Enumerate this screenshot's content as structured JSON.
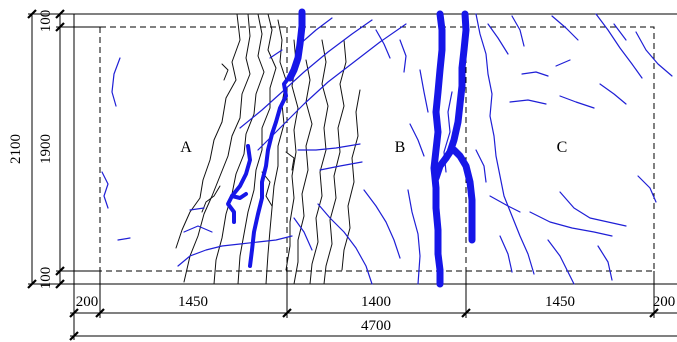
{
  "drawing": {
    "zones": [
      "A",
      "B",
      "C"
    ],
    "height_dimensions": {
      "total": "2100",
      "inner": "1900",
      "top_edge": "100",
      "bottom_edge": "100"
    },
    "width_dimensions": {
      "left_edge": "200",
      "segment_a": "1450",
      "segment_b": "1400",
      "segment_c": "1450",
      "right_edge": "200",
      "total": "4700"
    },
    "colors": {
      "lines": "#000000",
      "cracks_dark": "#111111",
      "cracks_blue": "#1f1fd6",
      "wide_cracks": "#1616e8"
    }
  }
}
